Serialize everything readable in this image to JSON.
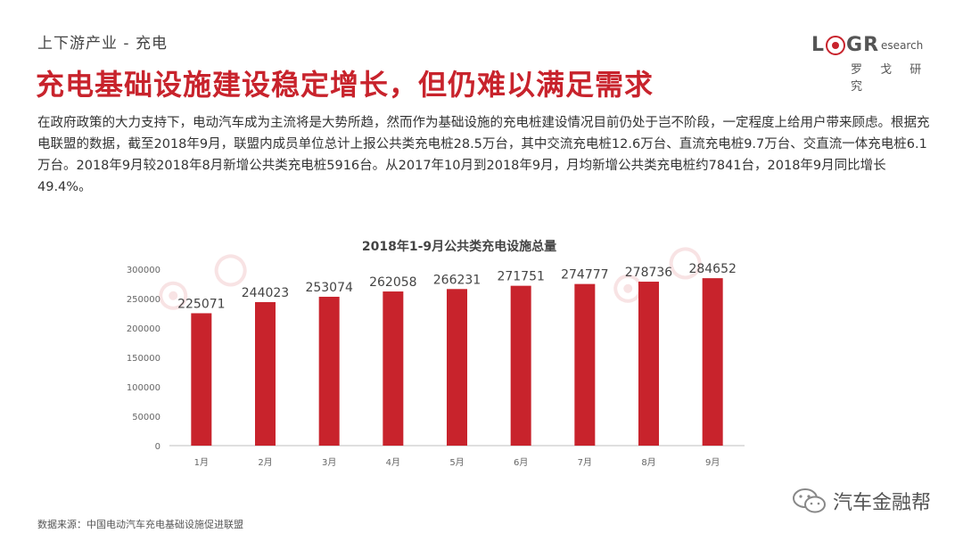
{
  "header": {
    "section": "上下游产业 - 充电",
    "title": "充电基础设施建设稳定增长，但仍难以满足需求"
  },
  "logo": {
    "l": "L",
    "g": "G",
    "r": "R",
    "esearch": "esearch",
    "cn": "罗 戈 研 究"
  },
  "body_text": "在政府政策的大力支持下，电动汽车成为主流将是大势所趋，然而作为基础设施的充电桩建设情况目前仍处于岂不阶段，一定程度上给用户带来顾虑。根据充电联盟的数据，截至2018年9月，联盟内成员单位总计上报公共类充电桩28.5万台，其中交流充电桩12.6万台、直流充电桩9.7万台、交直流一体充电桩6.1万台。2018年9月较2018年8月新增公共类充电桩5916台。从2017年10月到2018年9月，月均新增公共类充电桩约7841台，2018年9月同比增长49.4%。",
  "chart_data": {
    "type": "bar",
    "title": "2018年1-9月公共类充电设施总量",
    "categories": [
      "1月",
      "2月",
      "3月",
      "4月",
      "5月",
      "6月",
      "7月",
      "8月",
      "9月"
    ],
    "values": [
      225071,
      244023,
      253074,
      262058,
      266231,
      271751,
      274777,
      278736,
      284652
    ],
    "ylim": [
      0,
      300000
    ],
    "yticks": [
      "0",
      "50000",
      "100000",
      "150000",
      "200000",
      "250000",
      "300000"
    ],
    "bar_color": "#c8232c",
    "grid": false
  },
  "footer": {
    "source": "数据来源：中国电动汽车充电基础设施促进联盟",
    "wechat_name": "汽车金融帮"
  },
  "colors": {
    "accent": "#c8232c"
  }
}
